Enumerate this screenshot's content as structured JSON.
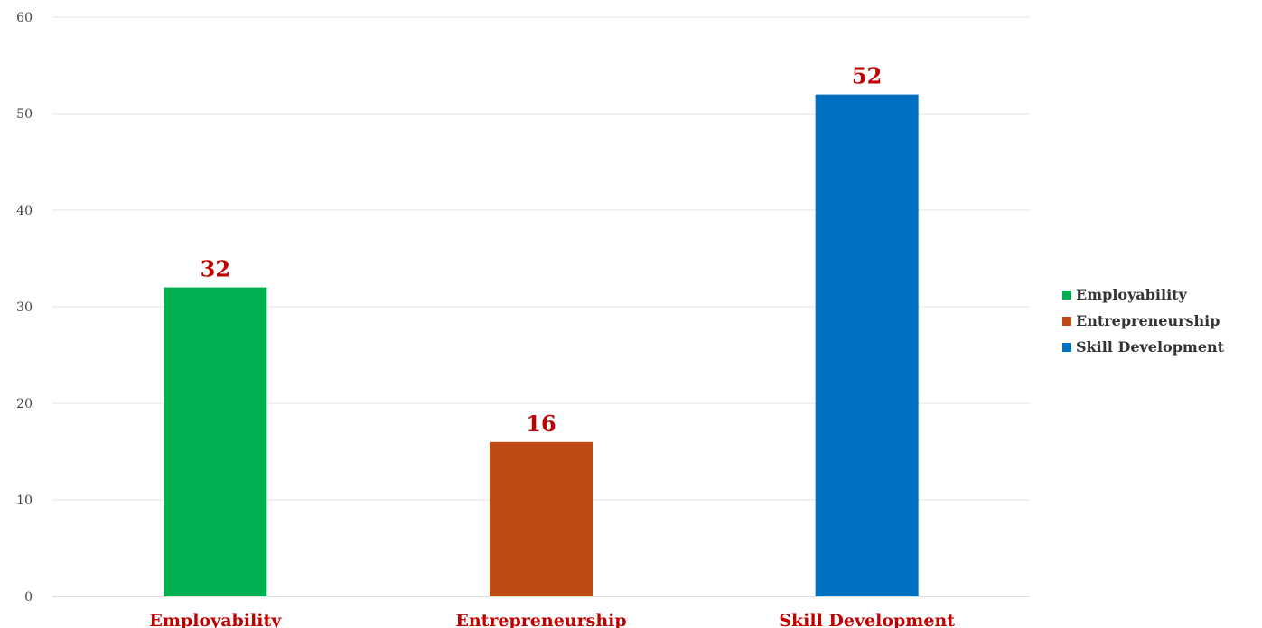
{
  "chart_data": {
    "type": "bar",
    "title": "",
    "xlabel": "",
    "ylabel": "",
    "categories": [
      "Employability",
      "Entrepreneurship",
      "Skill Development"
    ],
    "values": [
      32,
      16,
      52
    ],
    "colors": [
      "#00B050",
      "#C0504D",
      "#0070C0"
    ],
    "bar_colors": [
      "#00B050",
      "#BE4B14",
      "#0070C0"
    ],
    "data_label_color": "#C00000",
    "category_label_color": "#C00000",
    "ylim": [
      0,
      60
    ],
    "yticks": [
      0,
      10,
      20,
      30,
      40,
      50,
      60
    ],
    "grid": true,
    "legend": {
      "position": "right",
      "entries": [
        "Employability",
        "Entrepreneurship",
        "Skill Development"
      ]
    }
  }
}
